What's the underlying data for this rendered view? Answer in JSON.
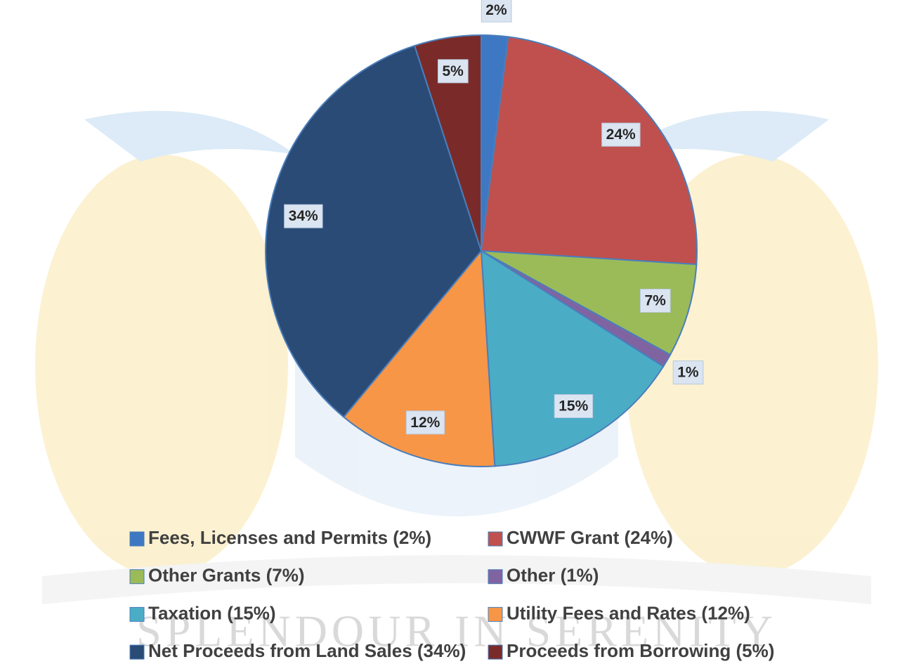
{
  "chart_data": {
    "type": "pie",
    "watermark": "SPLENDOUR IN SERENITY",
    "categories": [
      "Fees, Licenses and Permits (2%)",
      "CWWF Grant (24%)",
      "Other Grants (7%)",
      "Other (1%)",
      "Taxation (15%)",
      "Utility Fees and Rates (12%)",
      "Net Proceeds from Land Sales (34%)",
      "Proceeds from Borrowing (5%)"
    ],
    "values": [
      2,
      24,
      7,
      1,
      15,
      12,
      34,
      5
    ],
    "value_labels": [
      "2%",
      "24%",
      "7%",
      "1%",
      "15%",
      "12%",
      "34%",
      "5%"
    ],
    "colors": [
      "#3f78c2",
      "#c0504d",
      "#9bbb59",
      "#8064a2",
      "#4bacc6",
      "#f79646",
      "#2a4b76",
      "#7a2b29"
    ],
    "legend": "bottom"
  }
}
